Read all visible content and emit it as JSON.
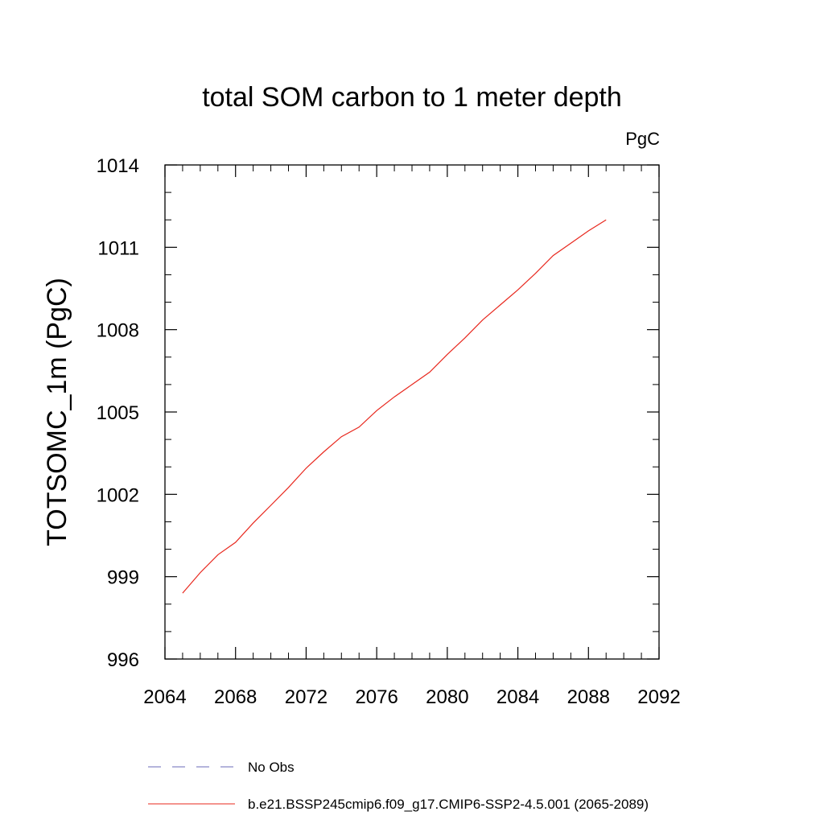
{
  "chart_data": {
    "type": "line",
    "title": "total SOM carbon to 1 meter depth",
    "units": "PgC",
    "ylabel": "TOTSOMC_1m  (PgC)",
    "xlabel": "",
    "xlim": [
      2064,
      2092
    ],
    "ylim": [
      996,
      1014
    ],
    "x_ticks": [
      2064,
      2068,
      2072,
      2076,
      2080,
      2084,
      2088,
      2092
    ],
    "y_ticks": [
      996,
      999,
      1002,
      1005,
      1008,
      1011,
      1014
    ],
    "x_minor_step": 1,
    "y_minor_step": 1,
    "grid": false,
    "legend_position": "bottom",
    "series": [
      {
        "name": "No Obs",
        "color": "#6a6ab8",
        "dash": "dashed",
        "x": [],
        "y": []
      },
      {
        "name": "b.e21.BSSP245cmip6.f09_g17.CMIP6-SSP2-4.5.001 (2065-2089)",
        "color": "#e8281e",
        "dash": "solid",
        "x": [
          2065,
          2066,
          2067,
          2068,
          2069,
          2070,
          2071,
          2072,
          2073,
          2074,
          2075,
          2076,
          2077,
          2078,
          2079,
          2080,
          2081,
          2082,
          2083,
          2084,
          2085,
          2086,
          2087,
          2088,
          2089
        ],
        "y": [
          998.4,
          999.15,
          999.8,
          1000.25,
          1000.95,
          1001.6,
          1002.25,
          1002.95,
          1003.55,
          1004.1,
          1004.45,
          1005.05,
          1005.55,
          1006.0,
          1006.45,
          1007.1,
          1007.7,
          1008.35,
          1008.9,
          1009.45,
          1010.05,
          1010.7,
          1011.15,
          1011.6,
          1012.0
        ]
      }
    ]
  }
}
